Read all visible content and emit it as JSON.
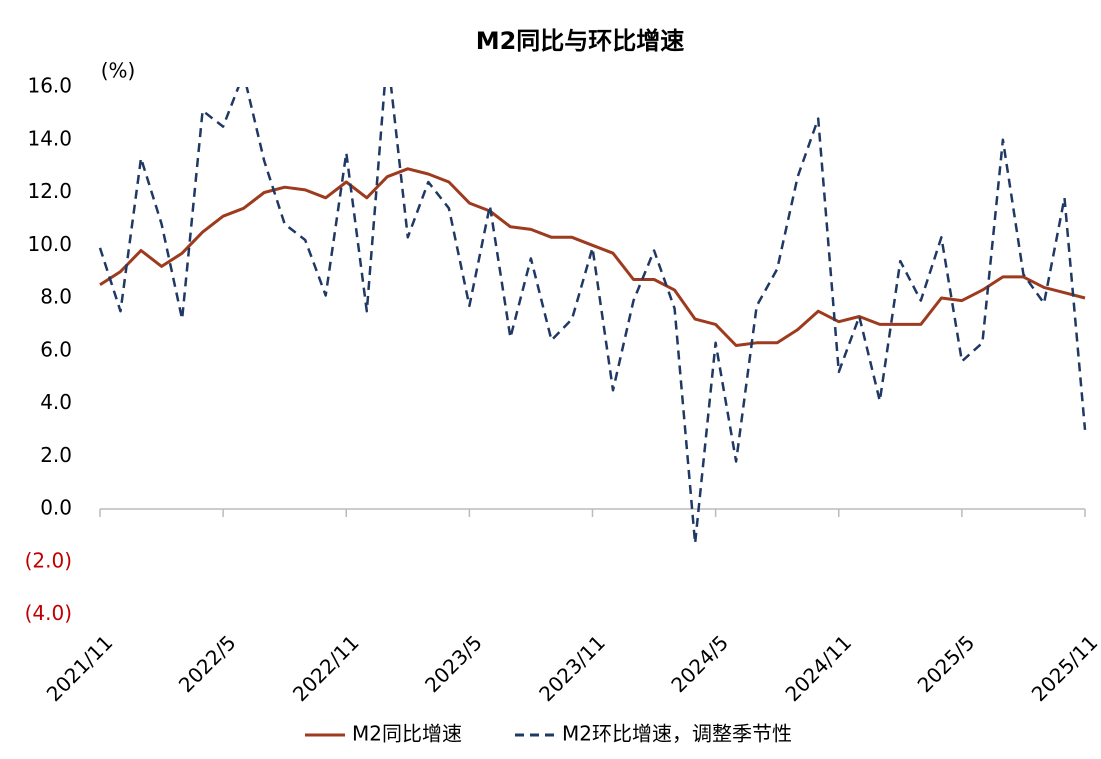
{
  "chart_data": {
    "type": "line",
    "title": "M2同比与环比增速",
    "y_unit_label": "(%)",
    "categories": [
      "2021/11",
      null,
      null,
      null,
      null,
      null,
      "2022/5",
      null,
      null,
      null,
      null,
      null,
      "2022/11",
      null,
      null,
      null,
      null,
      null,
      "2023/5",
      null,
      null,
      null,
      null,
      null,
      "2023/11",
      null,
      null,
      null,
      null,
      null,
      "2024/5",
      null,
      null,
      null,
      null,
      null,
      "2024/11",
      null,
      null,
      null,
      null,
      null,
      "2025/5",
      null,
      null,
      null,
      null,
      null,
      "2025/11"
    ],
    "series": [
      {
        "name": "M2同比增速",
        "color": "#9e3a1e",
        "dash": false,
        "values": [
          8.5,
          9.0,
          9.8,
          9.2,
          9.7,
          10.5,
          11.1,
          11.4,
          12.0,
          12.2,
          12.1,
          11.8,
          12.4,
          11.8,
          12.6,
          12.9,
          12.7,
          12.4,
          11.6,
          11.3,
          10.7,
          10.6,
          10.3,
          10.3,
          10.0,
          9.7,
          8.7,
          8.7,
          8.3,
          7.2,
          7.0,
          6.2,
          6.3,
          6.3,
          6.8,
          7.5,
          7.1,
          7.3,
          7.0,
          7.0,
          7.0,
          8.0,
          7.9,
          8.3,
          8.8,
          8.8,
          8.4,
          8.2,
          8.0
        ]
      },
      {
        "name": "M2环比增速，调整季节性",
        "color": "#1f3864",
        "dash": true,
        "values": [
          9.9,
          7.5,
          13.3,
          10.8,
          7.2,
          15.1,
          14.5,
          16.5,
          13.2,
          10.8,
          10.2,
          8.1,
          13.5,
          7.5,
          17.3,
          10.3,
          12.4,
          11.4,
          7.7,
          11.5,
          6.5,
          9.5,
          6.4,
          7.2,
          9.9,
          4.5,
          7.9,
          9.8,
          7.6,
          -1.3,
          6.3,
          1.8,
          7.7,
          9.1,
          12.6,
          14.8,
          5.2,
          7.3,
          4.1,
          9.4,
          7.9,
          10.3,
          5.6,
          6.3,
          14.0,
          8.9,
          7.8,
          11.8,
          3.0
        ]
      }
    ],
    "ylim": [
      -4,
      16
    ],
    "yticks": [
      {
        "value": 16,
        "label": "16.0"
      },
      {
        "value": 14,
        "label": "14.0"
      },
      {
        "value": 12,
        "label": "12.0"
      },
      {
        "value": 10,
        "label": "10.0"
      },
      {
        "value": 8,
        "label": "8.0"
      },
      {
        "value": 6,
        "label": "6.0"
      },
      {
        "value": 4,
        "label": "4.0"
      },
      {
        "value": 2,
        "label": "2.0"
      },
      {
        "value": 0,
        "label": "0.0"
      },
      {
        "value": -2,
        "label": "(2.0)"
      },
      {
        "value": -4,
        "label": "(4.0)"
      }
    ],
    "negative_tick_color": "#c00000",
    "grid": false,
    "legend": "bottom"
  }
}
